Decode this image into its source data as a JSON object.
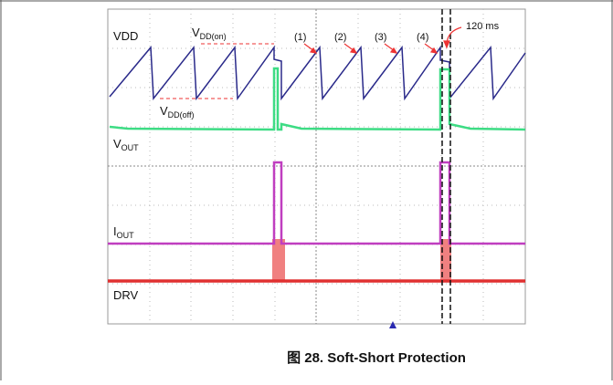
{
  "figure": {
    "labels": {
      "vdd": "VDD",
      "vdd_on": {
        "main": "V",
        "sub": "DD(on)"
      },
      "vdd_off": {
        "main": "V",
        "sub": "DD(off)"
      },
      "vout": {
        "main": "V",
        "sub": "OUT"
      },
      "iout": {
        "main": "I",
        "sub": "OUT"
      },
      "drv": "DRV"
    },
    "markers": [
      "(1)",
      "(2)",
      "(3)",
      "(4)"
    ],
    "time_note": "120 ms",
    "caption": "图 28. Soft-Short Protection"
  }
}
